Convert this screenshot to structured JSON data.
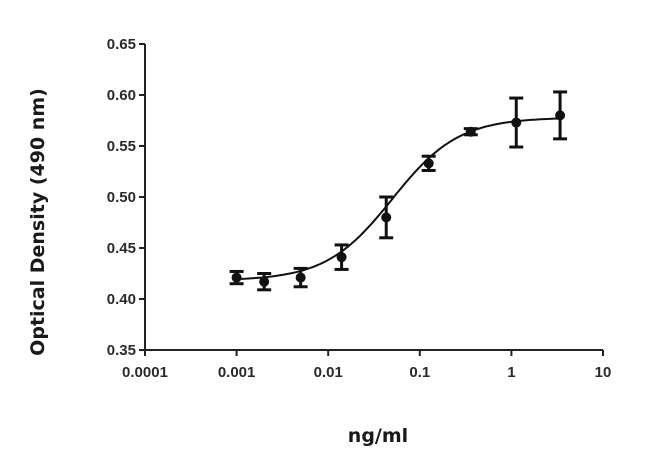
{
  "chart_data": {
    "type": "scatter",
    "title": "",
    "xlabel": "ng/ml",
    "ylabel": "Optical Density (490 nm)",
    "xscale": "log",
    "xlim": [
      0.0001,
      10
    ],
    "ylim": [
      0.35,
      0.65
    ],
    "x_ticks": [
      0.0001,
      0.001,
      0.01,
      0.1,
      1,
      10
    ],
    "x_tick_labels": [
      "0.0001",
      "0.001",
      "0.01",
      "0.1",
      "1",
      "10"
    ],
    "y_ticks": [
      0.35,
      0.4,
      0.45,
      0.5,
      0.55,
      0.6,
      0.65
    ],
    "y_tick_labels": [
      "0.35",
      "0.40",
      "0.45",
      "0.50",
      "0.55",
      "0.60",
      "0.65"
    ],
    "grid": false,
    "legend": null,
    "series": [
      {
        "name": "OD",
        "marker": "circle",
        "color": "#111111",
        "x": [
          0.001,
          0.002,
          0.005,
          0.014,
          0.043,
          0.125,
          0.36,
          1.13,
          3.4
        ],
        "y": [
          0.421,
          0.417,
          0.421,
          0.441,
          0.48,
          0.533,
          0.564,
          0.573,
          0.58
        ],
        "yerr": [
          0.006,
          0.008,
          0.009,
          0.012,
          0.02,
          0.007,
          0.003,
          0.024,
          0.023
        ]
      }
    ],
    "fit": {
      "type": "sigmoidal 4PL",
      "bottom": 0.418,
      "top": 0.578,
      "ec50": 0.05,
      "hill": 1.2
    }
  }
}
